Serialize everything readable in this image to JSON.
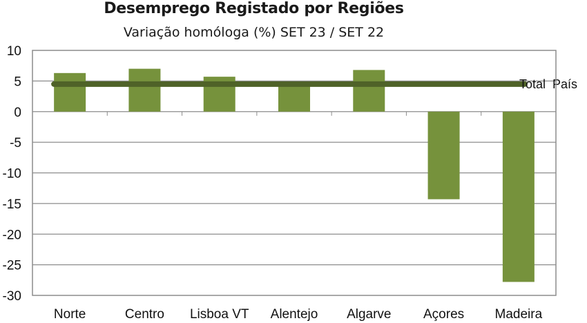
{
  "chart_data": {
    "type": "bar",
    "title": "Desemprego Registado por Regiões",
    "subtitle": "Variação homóloga (%) SET 23 / SET 22",
    "categories": [
      "Norte",
      "Centro",
      "Lisboa VT",
      "Alentejo",
      "Algarve",
      "Açores",
      "Madeira"
    ],
    "values": [
      6.3,
      7.0,
      5.7,
      4.4,
      6.8,
      -14.3,
      -27.8
    ],
    "reference_line": {
      "label": "Total  País",
      "value": 4.5
    },
    "ylim": [
      -30,
      10
    ],
    "yticks": [
      10,
      5,
      0,
      -5,
      -10,
      -15,
      -20,
      -25,
      -30
    ],
    "grid": true,
    "colors": {
      "bar": "#76923c",
      "reference_line": "#4f6228",
      "grid": "#8c8c8c",
      "frame": "#8c8c8c"
    }
  }
}
